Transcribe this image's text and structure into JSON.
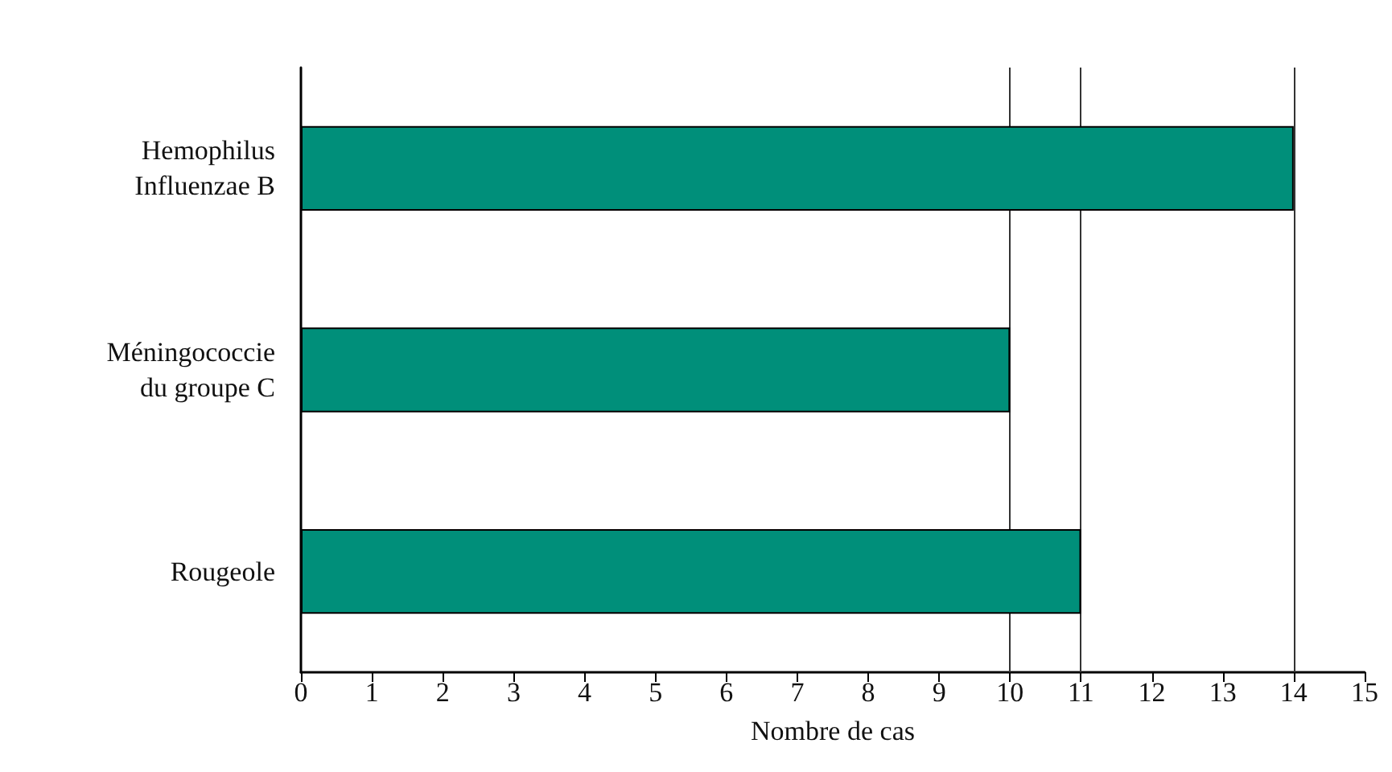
{
  "chart_data": {
    "type": "bar",
    "orientation": "horizontal",
    "xlabel": "Nombre de cas",
    "categories": [
      "Hemophilus\nInfluenzae B",
      "Méningococcie\ndu groupe C",
      "Rougeole"
    ],
    "values": [
      14,
      10,
      11
    ],
    "color": "#008f7a",
    "xlim": [
      0,
      15
    ],
    "xticks": [
      0,
      1,
      2,
      3,
      4,
      5,
      6,
      7,
      8,
      9,
      10,
      11,
      12,
      13,
      14,
      15
    ],
    "ref_lines": [
      {
        "axis": "x",
        "value": 10,
        "color": "#333333"
      },
      {
        "axis": "x",
        "value": 11,
        "color": "#333333"
      },
      {
        "axis": "x",
        "value": 14,
        "color": "#333333"
      }
    ],
    "data_labels": false
  }
}
